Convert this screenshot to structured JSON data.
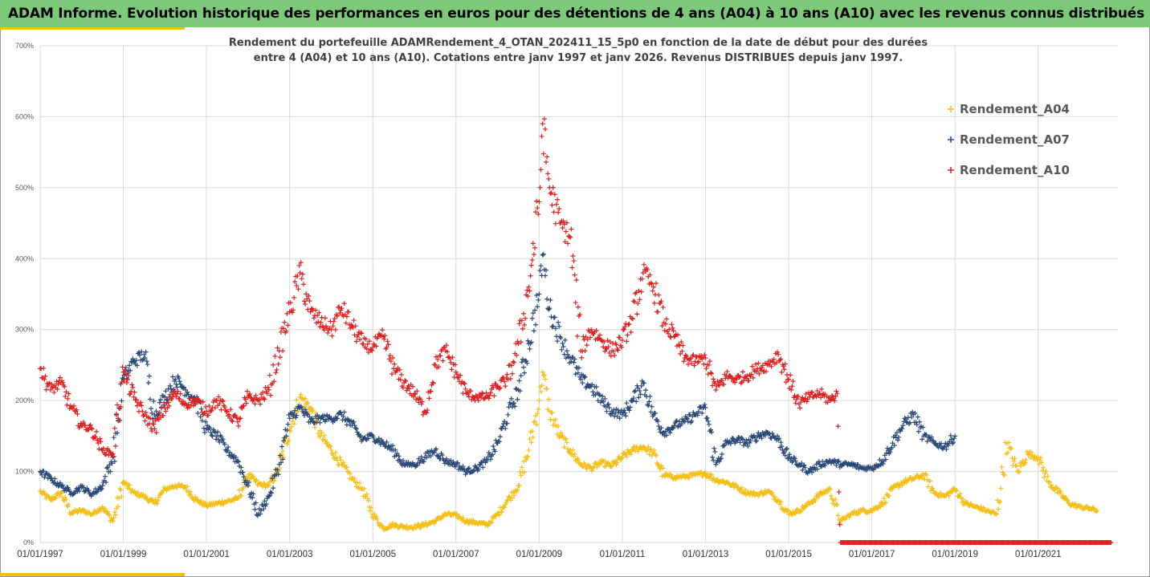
{
  "header": {
    "title": "ADAM Informe. Evolution historique des performances en euros pour des détentions de 4 ans (A04) à 10 ans (A10) avec les revenus connus distribués"
  },
  "chart_data": {
    "type": "scatter",
    "subtitle_lines": [
      "Rendement du portefeuille ADAMRendement_4_OTAN_202411_15_5p0  en fonction de la date de début pour des durées",
      "entre 4 (A04) et 10 ans (A10). Cotations entre janv 1997 et janv 2026. Revenus DISTRIBUES depuis janv 1997."
    ],
    "y_unit": "%",
    "ylim": [
      0,
      700
    ],
    "yticks": [
      "0%",
      "100%",
      "200%",
      "300%",
      "400%",
      "500%",
      "600%",
      "700%"
    ],
    "xlim": [
      "01/01/1997",
      "01/12/2022"
    ],
    "xticks": [
      "01/01/1997",
      "01/01/1999",
      "01/01/2001",
      "01/01/2003",
      "01/01/2005",
      "01/01/2007",
      "01/01/2009",
      "01/01/2011",
      "01/01/2013",
      "01/01/2015",
      "01/01/2017",
      "01/01/2019",
      "01/01/2021"
    ],
    "grid": true,
    "legend_position": "top-right",
    "marker": "+",
    "series": [
      {
        "name": "Rendement_A04",
        "color": "#f2c018",
        "points": [
          [
            "1997-01",
            72
          ],
          [
            "1997-04",
            60
          ],
          [
            "1997-07",
            70
          ],
          [
            "1997-10",
            42
          ],
          [
            "1998-01",
            45
          ],
          [
            "1998-04",
            40
          ],
          [
            "1998-07",
            50
          ],
          [
            "1998-10",
            30
          ],
          [
            "1999-01",
            85
          ],
          [
            "1999-04",
            70
          ],
          [
            "1999-07",
            65
          ],
          [
            "1999-10",
            55
          ],
          [
            "2000-01",
            75
          ],
          [
            "2000-04",
            80
          ],
          [
            "2000-07",
            78
          ],
          [
            "2000-10",
            60
          ],
          [
            "2001-01",
            52
          ],
          [
            "2001-04",
            55
          ],
          [
            "2001-07",
            58
          ],
          [
            "2001-10",
            62
          ],
          [
            "2002-01",
            95
          ],
          [
            "2002-04",
            82
          ],
          [
            "2002-07",
            80
          ],
          [
            "2002-10",
            105
          ],
          [
            "2003-01",
            160
          ],
          [
            "2003-04",
            205
          ],
          [
            "2003-07",
            190
          ],
          [
            "2003-10",
            150
          ],
          [
            "2004-01",
            130
          ],
          [
            "2004-04",
            110
          ],
          [
            "2004-07",
            90
          ],
          [
            "2004-10",
            75
          ],
          [
            "2005-01",
            40
          ],
          [
            "2005-04",
            20
          ],
          [
            "2005-07",
            25
          ],
          [
            "2005-10",
            22
          ],
          [
            "2006-01",
            22
          ],
          [
            "2006-04",
            25
          ],
          [
            "2006-07",
            30
          ],
          [
            "2006-10",
            40
          ],
          [
            "2007-01",
            38
          ],
          [
            "2007-04",
            30
          ],
          [
            "2007-07",
            28
          ],
          [
            "2007-10",
            25
          ],
          [
            "2008-01",
            40
          ],
          [
            "2008-04",
            60
          ],
          [
            "2008-07",
            80
          ],
          [
            "2008-10",
            130
          ],
          [
            "2009-01",
            200
          ],
          [
            "2009-02",
            240
          ],
          [
            "2009-04",
            185
          ],
          [
            "2009-07",
            150
          ],
          [
            "2009-10",
            130
          ],
          [
            "2010-01",
            110
          ],
          [
            "2010-04",
            105
          ],
          [
            "2010-07",
            112
          ],
          [
            "2010-10",
            108
          ],
          [
            "2011-01",
            120
          ],
          [
            "2011-04",
            130
          ],
          [
            "2011-07",
            135
          ],
          [
            "2011-10",
            125
          ],
          [
            "2012-01",
            95
          ],
          [
            "2012-04",
            92
          ],
          [
            "2012-07",
            93
          ],
          [
            "2012-10",
            95
          ],
          [
            "2013-01",
            98
          ],
          [
            "2013-04",
            88
          ],
          [
            "2013-07",
            85
          ],
          [
            "2013-10",
            78
          ],
          [
            "2014-01",
            70
          ],
          [
            "2014-04",
            68
          ],
          [
            "2014-07",
            72
          ],
          [
            "2014-10",
            60
          ],
          [
            "2015-01",
            40
          ],
          [
            "2015-04",
            45
          ],
          [
            "2015-07",
            55
          ],
          [
            "2015-10",
            68
          ],
          [
            "2016-01",
            75
          ],
          [
            "2016-04",
            30
          ],
          [
            "2016-07",
            40
          ],
          [
            "2016-10",
            45
          ],
          [
            "2017-01",
            45
          ],
          [
            "2017-04",
            55
          ],
          [
            "2017-07",
            75
          ],
          [
            "2017-10",
            85
          ],
          [
            "2018-01",
            90
          ],
          [
            "2018-04",
            95
          ],
          [
            "2018-07",
            70
          ],
          [
            "2018-10",
            65
          ],
          [
            "2019-01",
            75
          ],
          [
            "2019-04",
            55
          ],
          [
            "2019-07",
            50
          ],
          [
            "2019-10",
            45
          ],
          [
            "2020-01",
            40
          ],
          [
            "2020-04",
            140
          ],
          [
            "2020-07",
            100
          ],
          [
            "2020-10",
            125
          ],
          [
            "2021-01",
            120
          ],
          [
            "2021-04",
            85
          ],
          [
            "2021-07",
            70
          ],
          [
            "2021-10",
            55
          ],
          [
            "2022-01",
            50
          ],
          [
            "2022-04",
            48
          ],
          [
            "2022-06",
            45
          ]
        ]
      },
      {
        "name": "Rendement_A07",
        "color": "#2b4a78",
        "points": [
          [
            "1997-01",
            100
          ],
          [
            "1997-04",
            90
          ],
          [
            "1997-07",
            80
          ],
          [
            "1997-10",
            70
          ],
          [
            "1998-01",
            78
          ],
          [
            "1998-04",
            68
          ],
          [
            "1998-07",
            80
          ],
          [
            "1998-10",
            120
          ],
          [
            "1999-01",
            230
          ],
          [
            "1999-04",
            255
          ],
          [
            "1999-07",
            265
          ],
          [
            "1999-10",
            180
          ],
          [
            "2000-01",
            205
          ],
          [
            "2000-04",
            230
          ],
          [
            "2000-07",
            215
          ],
          [
            "2000-10",
            200
          ],
          [
            "2001-01",
            160
          ],
          [
            "2001-04",
            150
          ],
          [
            "2001-07",
            130
          ],
          [
            "2001-10",
            115
          ],
          [
            "2002-01",
            80
          ],
          [
            "2002-04",
            40
          ],
          [
            "2002-07",
            65
          ],
          [
            "2002-10",
            110
          ],
          [
            "2003-01",
            175
          ],
          [
            "2003-04",
            190
          ],
          [
            "2003-07",
            170
          ],
          [
            "2003-10",
            175
          ],
          [
            "2004-01",
            175
          ],
          [
            "2004-04",
            180
          ],
          [
            "2004-07",
            165
          ],
          [
            "2004-10",
            145
          ],
          [
            "2005-01",
            150
          ],
          [
            "2005-04",
            140
          ],
          [
            "2005-07",
            130
          ],
          [
            "2005-10",
            110
          ],
          [
            "2006-01",
            110
          ],
          [
            "2006-04",
            120
          ],
          [
            "2006-07",
            130
          ],
          [
            "2006-10",
            115
          ],
          [
            "2007-01",
            110
          ],
          [
            "2007-04",
            100
          ],
          [
            "2007-07",
            105
          ],
          [
            "2007-10",
            115
          ],
          [
            "2008-01",
            140
          ],
          [
            "2008-04",
            180
          ],
          [
            "2008-07",
            215
          ],
          [
            "2008-10",
            280
          ],
          [
            "2009-01",
            350
          ],
          [
            "2009-02",
            405
          ],
          [
            "2009-04",
            330
          ],
          [
            "2009-07",
            290
          ],
          [
            "2009-10",
            260
          ],
          [
            "2010-01",
            230
          ],
          [
            "2010-04",
            220
          ],
          [
            "2010-07",
            200
          ],
          [
            "2010-10",
            185
          ],
          [
            "2011-01",
            180
          ],
          [
            "2011-04",
            200
          ],
          [
            "2011-07",
            225
          ],
          [
            "2011-10",
            180
          ],
          [
            "2012-01",
            155
          ],
          [
            "2012-04",
            165
          ],
          [
            "2012-07",
            170
          ],
          [
            "2012-10",
            180
          ],
          [
            "2013-01",
            190
          ],
          [
            "2013-04",
            110
          ],
          [
            "2013-07",
            140
          ],
          [
            "2013-10",
            145
          ],
          [
            "2014-01",
            140
          ],
          [
            "2014-04",
            150
          ],
          [
            "2014-07",
            155
          ],
          [
            "2014-10",
            145
          ],
          [
            "2015-01",
            120
          ],
          [
            "2015-04",
            110
          ],
          [
            "2015-07",
            100
          ],
          [
            "2015-10",
            110
          ],
          [
            "2016-01",
            115
          ],
          [
            "2016-04",
            110
          ],
          [
            "2016-07",
            110
          ],
          [
            "2016-10",
            105
          ],
          [
            "2017-01",
            105
          ],
          [
            "2017-04",
            115
          ],
          [
            "2017-07",
            140
          ],
          [
            "2017-10",
            165
          ],
          [
            "2018-01",
            180
          ],
          [
            "2018-04",
            150
          ],
          [
            "2018-07",
            140
          ],
          [
            "2018-10",
            135
          ],
          [
            "2019-01",
            150
          ]
        ]
      },
      {
        "name": "Rendement_A10",
        "color": "#e02020",
        "points": [
          [
            "1997-01",
            245
          ],
          [
            "1997-04",
            215
          ],
          [
            "1997-07",
            225
          ],
          [
            "1997-10",
            190
          ],
          [
            "1998-01",
            165
          ],
          [
            "1998-04",
            160
          ],
          [
            "1998-07",
            130
          ],
          [
            "1998-10",
            125
          ],
          [
            "1999-01",
            240
          ],
          [
            "1999-04",
            205
          ],
          [
            "1999-07",
            180
          ],
          [
            "1999-10",
            160
          ],
          [
            "2000-01",
            190
          ],
          [
            "2000-04",
            210
          ],
          [
            "2000-07",
            195
          ],
          [
            "2000-10",
            200
          ],
          [
            "2001-01",
            185
          ],
          [
            "2001-04",
            200
          ],
          [
            "2001-07",
            185
          ],
          [
            "2001-10",
            170
          ],
          [
            "2002-01",
            205
          ],
          [
            "2002-04",
            200
          ],
          [
            "2002-07",
            215
          ],
          [
            "2002-10",
            270
          ],
          [
            "2003-01",
            325
          ],
          [
            "2003-04",
            380
          ],
          [
            "2003-07",
            325
          ],
          [
            "2003-10",
            310
          ],
          [
            "2004-01",
            300
          ],
          [
            "2004-04",
            330
          ],
          [
            "2004-07",
            305
          ],
          [
            "2004-10",
            280
          ],
          [
            "2005-01",
            275
          ],
          [
            "2005-04",
            290
          ],
          [
            "2005-07",
            245
          ],
          [
            "2005-10",
            225
          ],
          [
            "2006-01",
            210
          ],
          [
            "2006-04",
            185
          ],
          [
            "2006-07",
            250
          ],
          [
            "2006-10",
            270
          ],
          [
            "2007-01",
            240
          ],
          [
            "2007-04",
            210
          ],
          [
            "2007-07",
            205
          ],
          [
            "2007-10",
            205
          ],
          [
            "2008-01",
            220
          ],
          [
            "2008-04",
            230
          ],
          [
            "2008-07",
            280
          ],
          [
            "2008-10",
            360
          ],
          [
            "2009-01",
            480
          ],
          [
            "2009-02",
            590
          ],
          [
            "2009-04",
            500
          ],
          [
            "2009-07",
            450
          ],
          [
            "2009-10",
            430
          ],
          [
            "2010-01",
            270
          ],
          [
            "2010-04",
            300
          ],
          [
            "2010-07",
            285
          ],
          [
            "2010-10",
            270
          ],
          [
            "2011-01",
            285
          ],
          [
            "2011-04",
            315
          ],
          [
            "2011-07",
            380
          ],
          [
            "2011-10",
            360
          ],
          [
            "2012-01",
            310
          ],
          [
            "2012-04",
            290
          ],
          [
            "2012-07",
            260
          ],
          [
            "2012-10",
            255
          ],
          [
            "2013-01",
            260
          ],
          [
            "2013-04",
            215
          ],
          [
            "2013-07",
            235
          ],
          [
            "2013-10",
            230
          ],
          [
            "2014-01",
            235
          ],
          [
            "2014-04",
            245
          ],
          [
            "2014-07",
            250
          ],
          [
            "2014-10",
            265
          ],
          [
            "2015-01",
            230
          ],
          [
            "2015-04",
            195
          ],
          [
            "2015-07",
            205
          ],
          [
            "2015-10",
            210
          ],
          [
            "2016-01",
            200
          ],
          [
            "2016-03",
            210
          ],
          [
            "2016-04",
            0
          ],
          [
            "2016-10",
            0
          ],
          [
            "2017-04",
            0
          ],
          [
            "2017-10",
            0
          ],
          [
            "2018-04",
            0
          ],
          [
            "2018-10",
            0
          ],
          [
            "2019-04",
            0
          ],
          [
            "2019-10",
            0
          ],
          [
            "2020-04",
            0
          ],
          [
            "2020-10",
            0
          ],
          [
            "2021-04",
            0
          ],
          [
            "2021-10",
            0
          ],
          [
            "2022-04",
            0
          ],
          [
            "2022-10",
            0
          ]
        ]
      }
    ]
  }
}
